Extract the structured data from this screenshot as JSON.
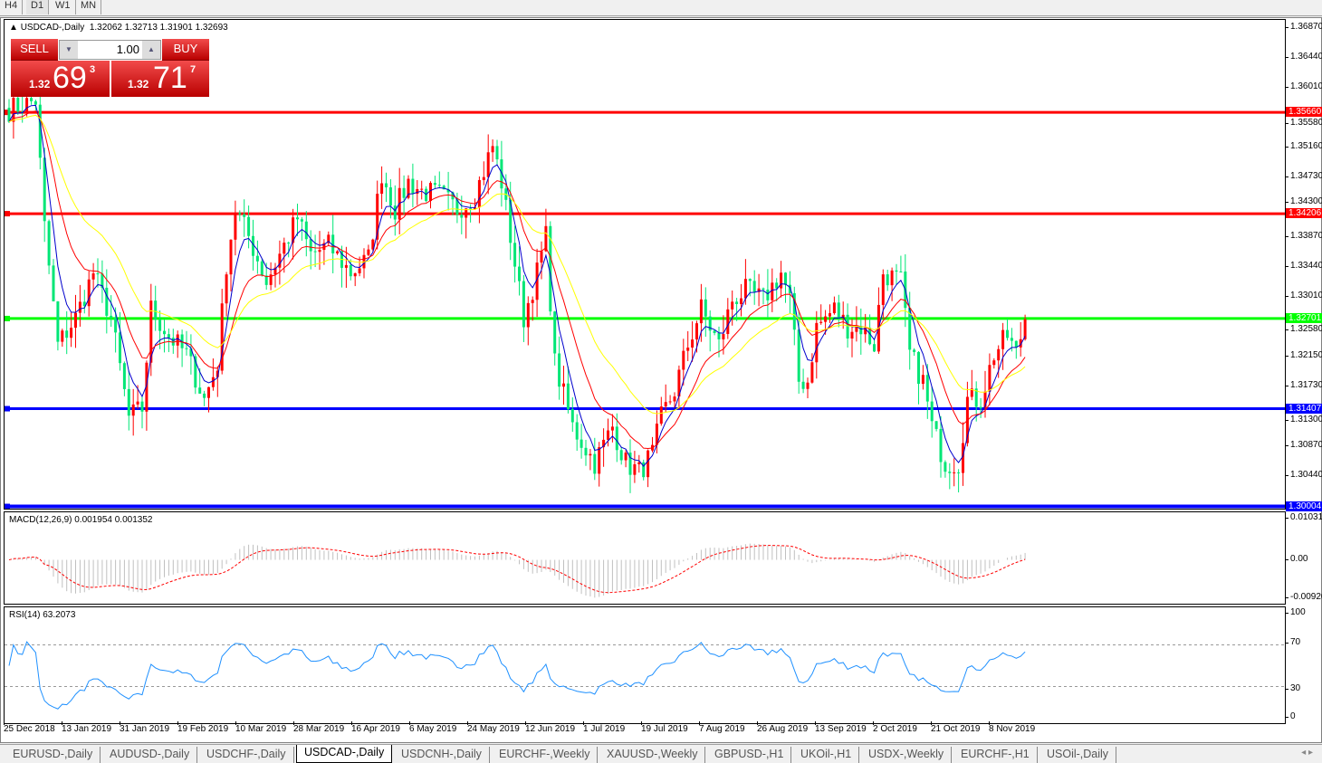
{
  "timeframes": [
    "H4",
    "D1",
    "W1",
    "MN"
  ],
  "active_timeframe": "D1",
  "chart": {
    "title": "USDCAD-,Daily",
    "ohlc": "1.32062 1.32713 1.31901 1.32693",
    "trade_panel": {
      "sell_label": "SELL",
      "buy_label": "BUY",
      "lot": "1.00",
      "sell_big": "1.32",
      "sell_main": "69",
      "sell_sup": "3",
      "buy_big": "1.32",
      "buy_main": "71",
      "buy_sup": "7"
    },
    "price_axis": [
      "1.36870",
      "1.36440",
      "1.36010",
      "1.35580",
      "1.35160",
      "1.34730",
      "1.34300",
      "1.33870",
      "1.33440",
      "1.33010",
      "1.32580",
      "1.32150",
      "1.31730",
      "1.31300",
      "1.30870",
      "1.30440"
    ],
    "price_range": [
      1.3,
      1.3698
    ],
    "levels": [
      {
        "price": "1.35660",
        "color": "#ff0000"
      },
      {
        "price": "1.34206",
        "color": "#ff0000"
      },
      {
        "price": "1.32701",
        "color": "#00ff00"
      },
      {
        "price": "1.31407",
        "color": "#0000ff"
      },
      {
        "price": "1.30004",
        "color": "#0000ff"
      }
    ],
    "bull_color": "#ff0000",
    "bear_color": "#00e676",
    "ma_colors": [
      "#0000cc",
      "#ff0000",
      "#ffff00"
    ],
    "close_keypoints": [
      [
        0,
        1.357
      ],
      [
        6,
        1.3583
      ],
      [
        8,
        1.3401
      ],
      [
        11,
        1.3232
      ],
      [
        15,
        1.3271
      ],
      [
        19,
        1.3336
      ],
      [
        23,
        1.3271
      ],
      [
        27,
        1.3128
      ],
      [
        30,
        1.3141
      ],
      [
        32,
        1.3284
      ],
      [
        36,
        1.3245
      ],
      [
        40,
        1.3219
      ],
      [
        44,
        1.3154
      ],
      [
        47,
        1.3206
      ],
      [
        49,
        1.3349
      ],
      [
        51,
        1.3427
      ],
      [
        54,
        1.3388
      ],
      [
        58,
        1.3323
      ],
      [
        62,
        1.3375
      ],
      [
        65,
        1.3414
      ],
      [
        68,
        1.3362
      ],
      [
        72,
        1.3375
      ],
      [
        77,
        1.3336
      ],
      [
        81,
        1.3356
      ],
      [
        84,
        1.3479
      ],
      [
        87,
        1.3427
      ],
      [
        90,
        1.3466
      ],
      [
        93,
        1.3453
      ],
      [
        97,
        1.3447
      ],
      [
        101,
        1.3427
      ],
      [
        105,
        1.3447
      ],
      [
        109,
        1.3518
      ],
      [
        111,
        1.3466
      ],
      [
        113,
        1.3388
      ],
      [
        116,
        1.3271
      ],
      [
        119,
        1.3336
      ],
      [
        121,
        1.3388
      ],
      [
        123,
        1.3206
      ],
      [
        127,
        1.3115
      ],
      [
        132,
        1.3063
      ],
      [
        136,
        1.3115
      ],
      [
        139,
        1.3063
      ],
      [
        142,
        1.305
      ],
      [
        145,
        1.3076
      ],
      [
        147,
        1.3128
      ],
      [
        150,
        1.3167
      ],
      [
        153,
        1.3232
      ],
      [
        156,
        1.3284
      ],
      [
        160,
        1.3232
      ],
      [
        163,
        1.3297
      ],
      [
        166,
        1.331
      ],
      [
        170,
        1.3297
      ],
      [
        174,
        1.3336
      ],
      [
        176,
        1.3297
      ],
      [
        178,
        1.318
      ],
      [
        180,
        1.318
      ],
      [
        182,
        1.3258
      ],
      [
        186,
        1.3284
      ],
      [
        189,
        1.3258
      ],
      [
        192,
        1.3258
      ],
      [
        195,
        1.3232
      ],
      [
        197,
        1.3336
      ],
      [
        201,
        1.3323
      ],
      [
        203,
        1.3219
      ],
      [
        206,
        1.318
      ],
      [
        208,
        1.3115
      ],
      [
        211,
        1.3063
      ],
      [
        214,
        1.3063
      ],
      [
        216,
        1.3154
      ],
      [
        219,
        1.3154
      ],
      [
        222,
        1.3219
      ],
      [
        225,
        1.3245
      ],
      [
        227,
        1.3219
      ],
      [
        229,
        1.3269
      ]
    ],
    "bars": 230
  },
  "macd": {
    "label": "MACD(12,26,9) 0.001954 0.001352",
    "axis": [
      "0.010311",
      "0.00",
      "-0.009203"
    ],
    "range": [
      -0.009203,
      0.010311
    ],
    "hist_color": "#c0c0c0",
    "signal_color": "#ff0000"
  },
  "rsi": {
    "label": "RSI(14) 63.2073",
    "axis": [
      "100",
      "70",
      "30",
      "0"
    ],
    "levels": [
      70,
      30
    ],
    "color": "#1e90ff"
  },
  "dates": [
    "25 Dec 2018",
    "13 Jan 2019",
    "31 Jan 2019",
    "19 Feb 2019",
    "10 Mar 2019",
    "28 Mar 2019",
    "16 Apr 2019",
    "6 May 2019",
    "24 May 2019",
    "12 Jun 2019",
    "1 Jul 2019",
    "19 Jul 2019",
    "7 Aug 2019",
    "26 Aug 2019",
    "13 Sep 2019",
    "2 Oct 2019",
    "21 Oct 2019",
    "8 Nov 2019"
  ],
  "tabs": [
    "EURUSD-,Daily",
    "AUDUSD-,Daily",
    "USDCHF-,Daily",
    "USDCAD-,Daily",
    "USDCNH-,Daily",
    "EURCHF-,Weekly",
    "XAUUSD-,Weekly",
    "GBPUSD-,H1",
    "UKOil-,H1",
    "USDX-,Weekly",
    "EURCHF-,H1",
    "USOil-,Daily"
  ],
  "active_tab": "USDCAD-,Daily"
}
